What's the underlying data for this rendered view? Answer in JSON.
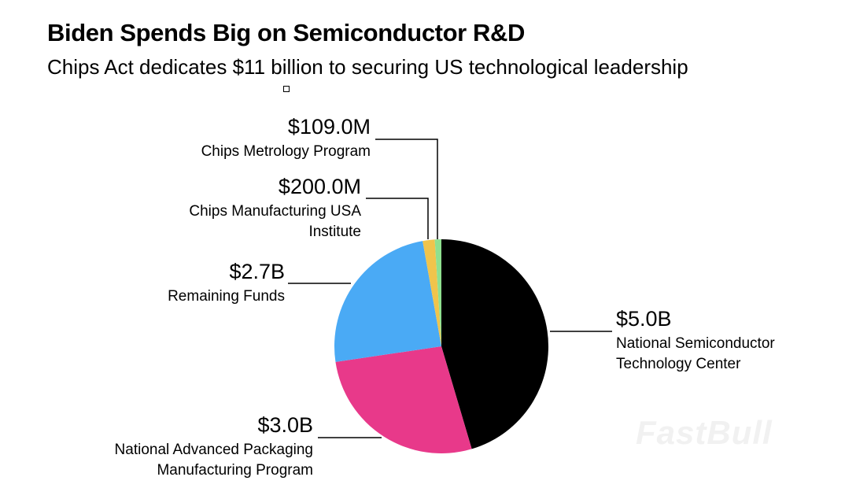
{
  "watermark": "FastBull",
  "chart_data": {
    "type": "pie",
    "title": "Biden Spends Big on Semiconductor R&D",
    "subtitle": "Chips Act dedicates $11 billion to securing US technological leadership",
    "unit": "USD millions",
    "slices": [
      {
        "name": "National Semiconductor Technology Center",
        "label_value": "$5.0B",
        "label_lines": [
          "National Semiconductor",
          "Technology Center"
        ],
        "value": 5000,
        "color": "#000000"
      },
      {
        "name": "National Advanced Packaging Manufacturing Program",
        "label_value": "$3.0B",
        "label_lines": [
          "National Advanced Packaging",
          "Manufacturing Program"
        ],
        "value": 3000,
        "color": "#e8398a"
      },
      {
        "name": "Remaining Funds",
        "label_value": "$2.7B",
        "label_lines": [
          "Remaining Funds"
        ],
        "value": 2700,
        "color": "#4aaaf5"
      },
      {
        "name": "Chips Manufacturing USA Institute",
        "label_value": "$200.0M",
        "label_lines": [
          "Chips Manufacturing USA",
          "Institute"
        ],
        "value": 200,
        "color": "#f0c44c"
      },
      {
        "name": "Chips Metrology Program",
        "label_value": "$109.0M",
        "label_lines": [
          "Chips Metrology Program"
        ],
        "value": 109,
        "color": "#8fe08f"
      }
    ]
  }
}
